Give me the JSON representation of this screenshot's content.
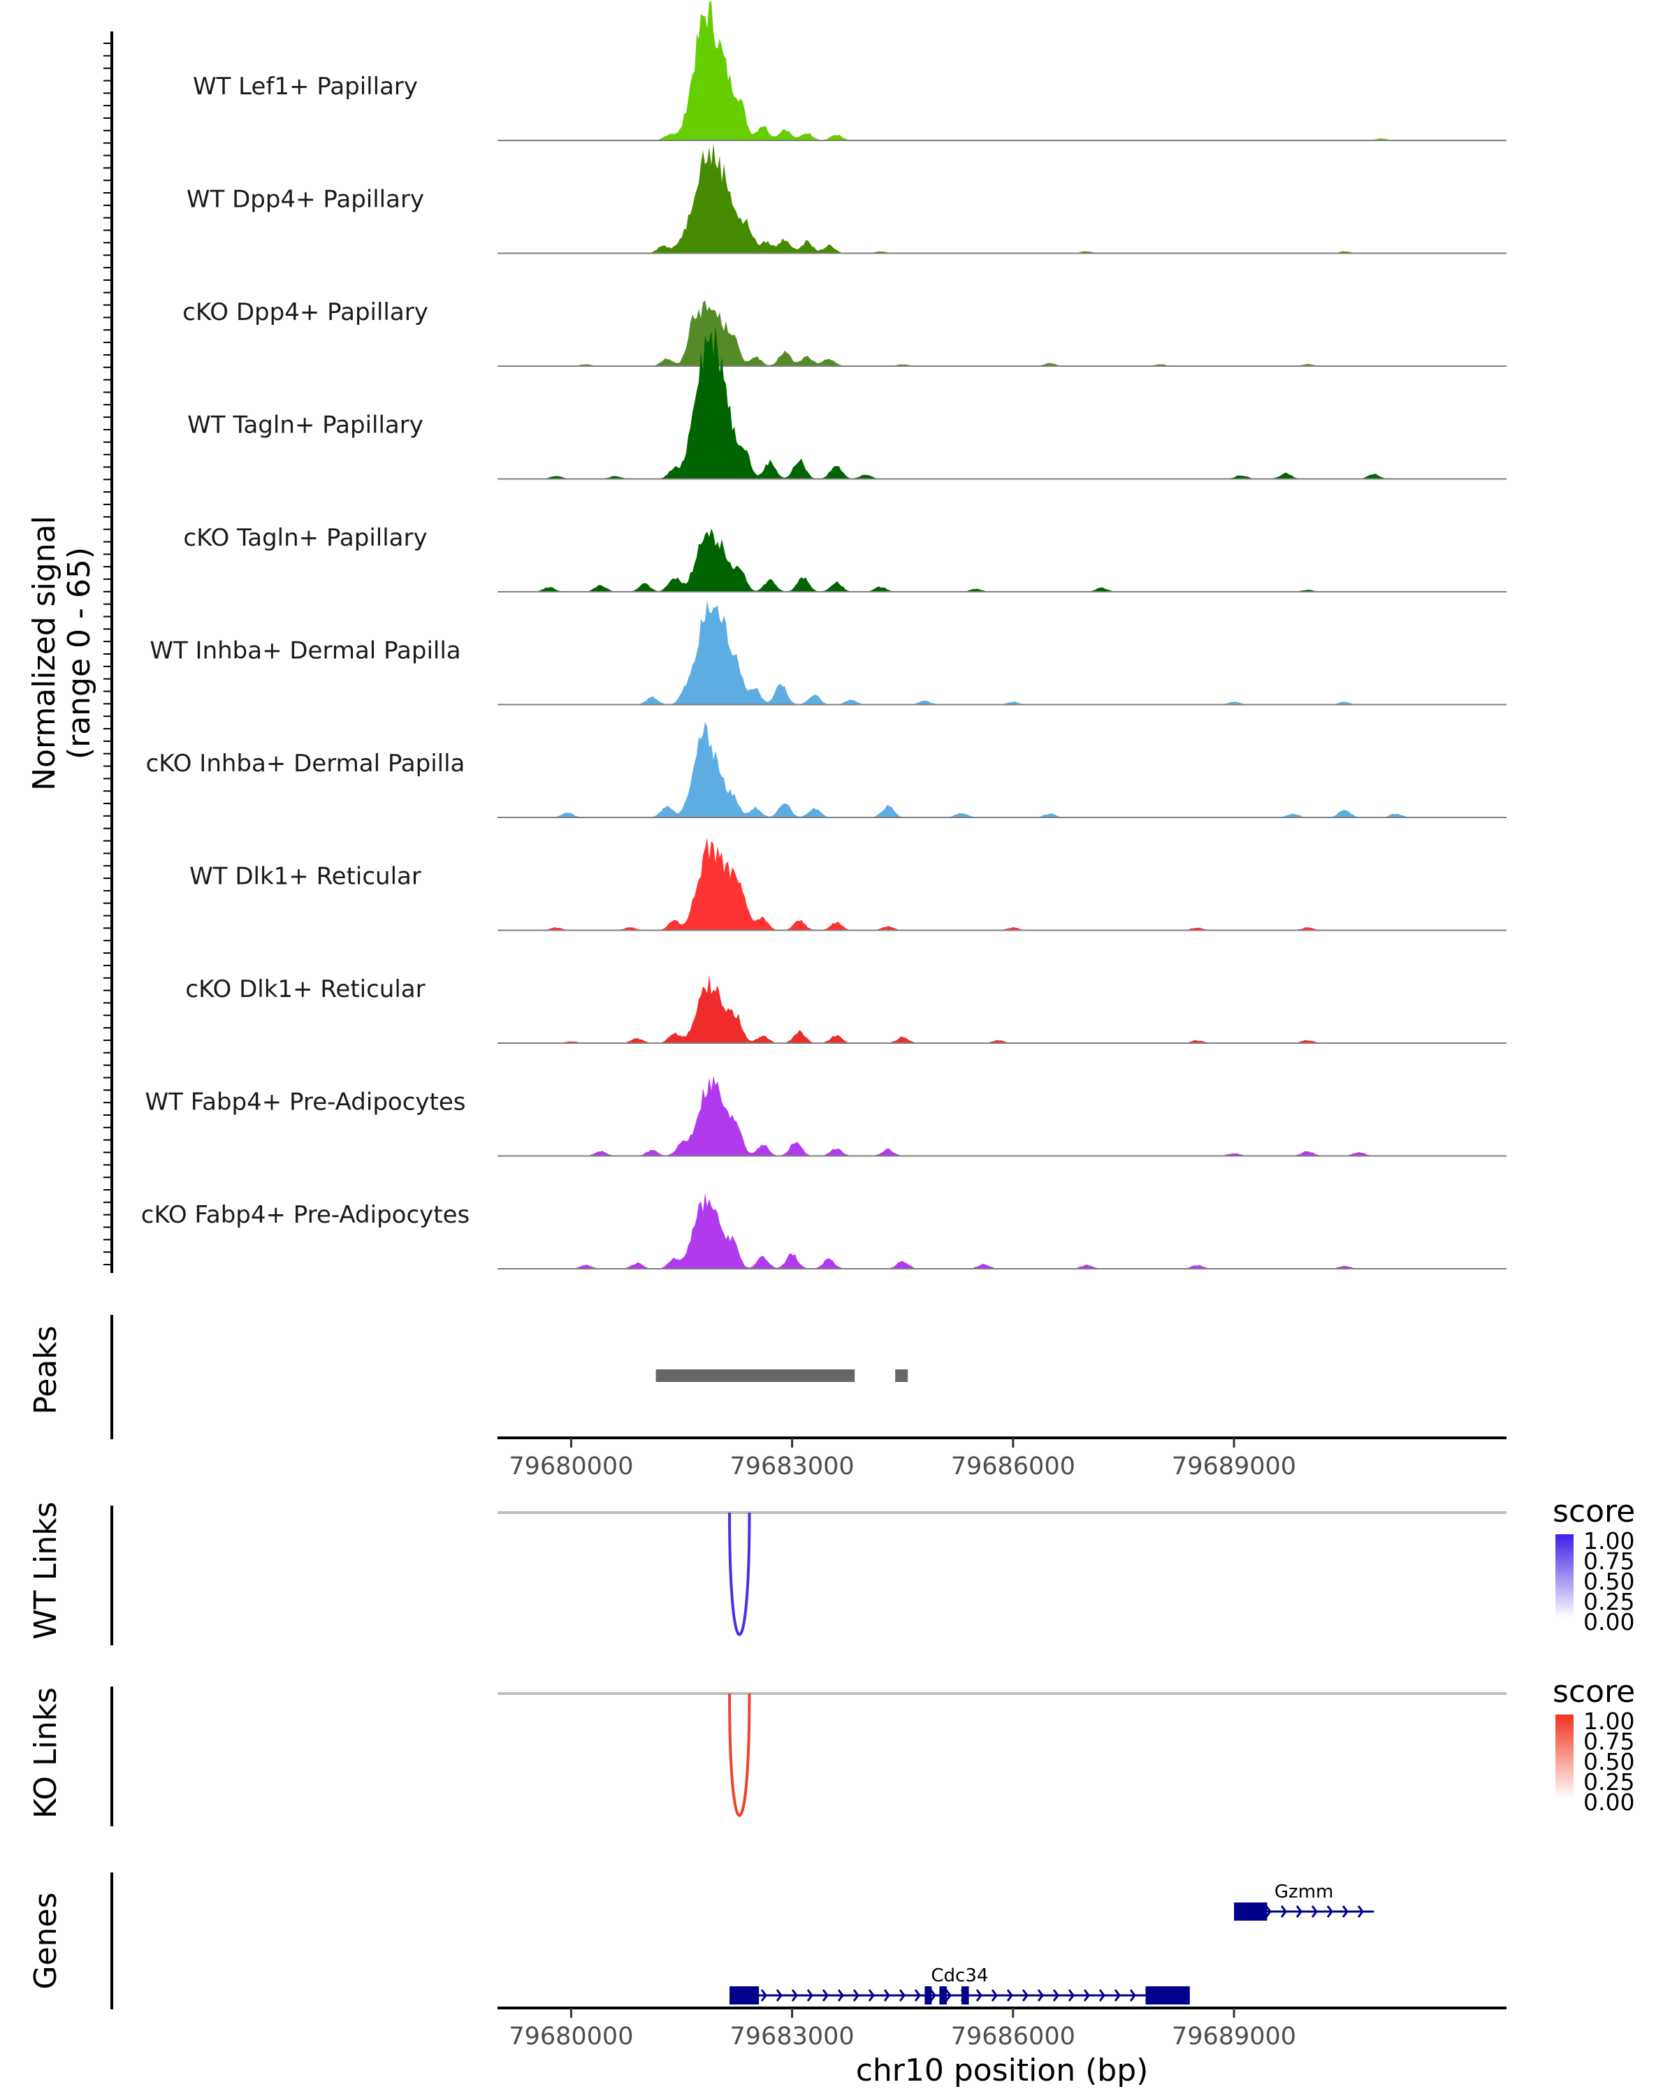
{
  "chart_data": {
    "type": "area",
    "title": "",
    "region": "chr10",
    "xlabel": "chr10 position (bp)",
    "xlim": [
      79679000,
      79692700
    ],
    "x_ticks": [
      79680000,
      79683000,
      79686000,
      79689000
    ],
    "x_tick_labels": [
      "79680000",
      "79683000",
      "79686000",
      "79689000"
    ],
    "ylabel_line1": "Normalized signal",
    "ylabel_line2": "(range 0 - 65)",
    "ylim": [
      0,
      65
    ],
    "tracks": [
      {
        "name": "WT Lef1+ Papillary",
        "color": "#66CD00",
        "peaks": [
          [
            79681350,
            0.07
          ],
          [
            79681600,
            0.12
          ],
          [
            79681750,
            0.75
          ],
          [
            79681900,
            0.82
          ],
          [
            79682100,
            0.55
          ],
          [
            79682300,
            0.3
          ],
          [
            79682600,
            0.16
          ],
          [
            79682900,
            0.12
          ],
          [
            79683200,
            0.08
          ],
          [
            79683600,
            0.06
          ],
          [
            79691000,
            0.02
          ]
        ]
      },
      {
        "name": "WT Dpp4+ Papillary",
        "color": "#458B00",
        "peaks": [
          [
            79681250,
            0.08
          ],
          [
            79681500,
            0.1
          ],
          [
            79681750,
            0.75
          ],
          [
            79681950,
            0.7
          ],
          [
            79682150,
            0.5
          ],
          [
            79682400,
            0.25
          ],
          [
            79682650,
            0.12
          ],
          [
            79682900,
            0.15
          ],
          [
            79683200,
            0.12
          ],
          [
            79683500,
            0.08
          ],
          [
            79684200,
            0.02
          ],
          [
            79687000,
            0.02
          ],
          [
            79690500,
            0.02
          ]
        ]
      },
      {
        "name": "cKO Dpp4+ Papillary",
        "color": "#548B26",
        "peaks": [
          [
            79680200,
            0.02
          ],
          [
            79681300,
            0.08
          ],
          [
            79681650,
            0.3
          ],
          [
            79681800,
            0.45
          ],
          [
            79682000,
            0.4
          ],
          [
            79682200,
            0.25
          ],
          [
            79682500,
            0.1
          ],
          [
            79682900,
            0.15
          ],
          [
            79683200,
            0.1
          ],
          [
            79683500,
            0.08
          ],
          [
            79684500,
            0.02
          ],
          [
            79686500,
            0.03
          ],
          [
            79688000,
            0.02
          ],
          [
            79690000,
            0.02
          ]
        ]
      },
      {
        "name": "WT Tagln+ Papillary",
        "color": "#006400",
        "peaks": [
          [
            79679800,
            0.03
          ],
          [
            79680600,
            0.03
          ],
          [
            79681400,
            0.1
          ],
          [
            79681750,
            1.0
          ],
          [
            79681950,
            0.95
          ],
          [
            79682100,
            0.55
          ],
          [
            79682350,
            0.3
          ],
          [
            79682700,
            0.18
          ],
          [
            79683100,
            0.2
          ],
          [
            79683600,
            0.15
          ],
          [
            79684000,
            0.05
          ],
          [
            79689100,
            0.04
          ],
          [
            79689700,
            0.06
          ],
          [
            79690900,
            0.05
          ]
        ]
      },
      {
        "name": "cKO Tagln+ Papillary",
        "color": "#006400",
        "peaks": [
          [
            79679700,
            0.05
          ],
          [
            79680400,
            0.07
          ],
          [
            79681000,
            0.08
          ],
          [
            79681400,
            0.15
          ],
          [
            79681800,
            0.55
          ],
          [
            79682050,
            0.42
          ],
          [
            79682300,
            0.2
          ],
          [
            79682700,
            0.12
          ],
          [
            79683150,
            0.15
          ],
          [
            79683600,
            0.1
          ],
          [
            79684200,
            0.05
          ],
          [
            79685500,
            0.03
          ],
          [
            79687200,
            0.04
          ],
          [
            79690000,
            0.02
          ]
        ]
      },
      {
        "name": "WT Inhba+ Dermal Papilla",
        "color": "#5DADE2",
        "peaks": [
          [
            79681100,
            0.08
          ],
          [
            79681550,
            0.12
          ],
          [
            79681800,
            0.75
          ],
          [
            79682000,
            0.72
          ],
          [
            79682200,
            0.4
          ],
          [
            79682500,
            0.15
          ],
          [
            79682850,
            0.22
          ],
          [
            79683300,
            0.1
          ],
          [
            79683800,
            0.05
          ],
          [
            79684800,
            0.04
          ],
          [
            79686000,
            0.03
          ],
          [
            79689000,
            0.03
          ],
          [
            79690500,
            0.03
          ]
        ]
      },
      {
        "name": "cKO Inhba+ Dermal Papilla",
        "color": "#5DADE2",
        "peaks": [
          [
            79679950,
            0.05
          ],
          [
            79681300,
            0.12
          ],
          [
            79681750,
            0.7
          ],
          [
            79681950,
            0.5
          ],
          [
            79682200,
            0.2
          ],
          [
            79682500,
            0.1
          ],
          [
            79682900,
            0.15
          ],
          [
            79683300,
            0.1
          ],
          [
            79684300,
            0.12
          ],
          [
            79685300,
            0.05
          ],
          [
            79686500,
            0.04
          ],
          [
            79689800,
            0.04
          ],
          [
            79690500,
            0.08
          ],
          [
            79691200,
            0.04
          ]
        ]
      },
      {
        "name": "WT Dlk1+ Reticular",
        "color": "#FF3333",
        "peaks": [
          [
            79679800,
            0.03
          ],
          [
            79680800,
            0.03
          ],
          [
            79681400,
            0.1
          ],
          [
            79681800,
            0.62
          ],
          [
            79682000,
            0.6
          ],
          [
            79682250,
            0.45
          ],
          [
            79682600,
            0.12
          ],
          [
            79683100,
            0.1
          ],
          [
            79683600,
            0.08
          ],
          [
            79684300,
            0.04
          ],
          [
            79686000,
            0.03
          ],
          [
            79688500,
            0.03
          ],
          [
            79690000,
            0.03
          ]
        ]
      },
      {
        "name": "cKO Dlk1+ Reticular",
        "color": "#EE2C2C",
        "peaks": [
          [
            79680000,
            0.02
          ],
          [
            79680900,
            0.05
          ],
          [
            79681400,
            0.1
          ],
          [
            79681800,
            0.45
          ],
          [
            79682000,
            0.42
          ],
          [
            79682250,
            0.25
          ],
          [
            79682600,
            0.08
          ],
          [
            79683100,
            0.12
          ],
          [
            79683600,
            0.08
          ],
          [
            79684500,
            0.06
          ],
          [
            79685800,
            0.03
          ],
          [
            79688500,
            0.03
          ],
          [
            79690000,
            0.03
          ]
        ]
      },
      {
        "name": "WT Fabp4+ Pre-Adipocytes",
        "color": "#B23AEE",
        "peaks": [
          [
            79680400,
            0.05
          ],
          [
            79681100,
            0.06
          ],
          [
            79681500,
            0.12
          ],
          [
            79681800,
            0.5
          ],
          [
            79682000,
            0.55
          ],
          [
            79682250,
            0.3
          ],
          [
            79682600,
            0.12
          ],
          [
            79683050,
            0.15
          ],
          [
            79683600,
            0.08
          ],
          [
            79684300,
            0.07
          ],
          [
            79689000,
            0.03
          ],
          [
            79690000,
            0.05
          ],
          [
            79690700,
            0.04
          ]
        ]
      },
      {
        "name": "cKO Fabp4+ Pre-Adipocytes",
        "color": "#B23AEE",
        "peaks": [
          [
            79680200,
            0.04
          ],
          [
            79680900,
            0.06
          ],
          [
            79681400,
            0.1
          ],
          [
            79681750,
            0.52
          ],
          [
            79681950,
            0.45
          ],
          [
            79682200,
            0.25
          ],
          [
            79682600,
            0.12
          ],
          [
            79683000,
            0.16
          ],
          [
            79683500,
            0.1
          ],
          [
            79684500,
            0.08
          ],
          [
            79685600,
            0.05
          ],
          [
            79687000,
            0.04
          ],
          [
            79688500,
            0.04
          ],
          [
            79690500,
            0.03
          ]
        ]
      }
    ],
    "peaks_track": {
      "label": "Peaks",
      "color": "#666666",
      "intervals": [
        [
          79681150,
          79683850
        ],
        [
          79684400,
          79684550
        ]
      ]
    },
    "links_tracks": [
      {
        "label": "WT Links",
        "color": "#4F2EE0",
        "start": 79682150,
        "end": 79682420,
        "score": 0.9,
        "legend_title": "score",
        "legend_low": "#FFFFFF",
        "legend_high": "#3D1FE5",
        "legend_ticks": [
          "1.00",
          "0.75",
          "0.50",
          "0.25",
          "0.00"
        ]
      },
      {
        "label": "KO Links",
        "color": "#F0432B",
        "start": 79682150,
        "end": 79682420,
        "score": 0.9,
        "legend_title": "score",
        "legend_low": "#FFFFFF",
        "legend_high": "#F2331E",
        "legend_ticks": [
          "1.00",
          "0.75",
          "0.50",
          "0.25",
          "0.00"
        ]
      }
    ],
    "genes_track": {
      "label": "Genes",
      "color": "#00008B",
      "genes": [
        {
          "name": "Gzmm",
          "start": 79689000,
          "end": 79690900,
          "exons": [
            [
              79689000,
              79689450
            ]
          ],
          "row": 1
        },
        {
          "name": "Cdc34",
          "start": 79682150,
          "end": 79688400,
          "exons": [
            [
              79682150,
              79682550
            ],
            [
              79684800,
              79684850
            ],
            [
              79685000,
              79685100
            ],
            [
              79685300,
              79685400
            ],
            [
              79687800,
              79688400
            ]
          ],
          "row": 2
        }
      ]
    }
  }
}
